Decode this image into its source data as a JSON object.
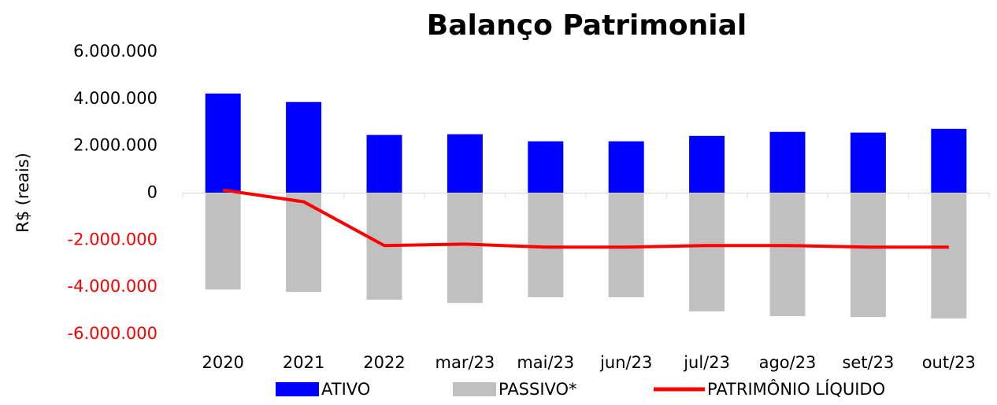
{
  "chart_data": {
    "type": "bar",
    "title": "Balanço Patrimonial",
    "y_label": "R$ (reais)",
    "categories": [
      "2020",
      "2021",
      "2022",
      "mar/23",
      "mai/23",
      "jun/23",
      "jul/23",
      "ago/23",
      "set/23",
      "out/23"
    ],
    "series": [
      {
        "name": "ATIVO",
        "type": "bar",
        "color": "#0000ff",
        "values": [
          4230000,
          3870000,
          2470000,
          2500000,
          2200000,
          2200000,
          2430000,
          2600000,
          2570000,
          2730000
        ]
      },
      {
        "name": "PASSIVO*",
        "type": "bar",
        "color": "#c0c0c0",
        "values": [
          -4100000,
          -4200000,
          -4530000,
          -4670000,
          -4430000,
          -4430000,
          -5030000,
          -5230000,
          -5270000,
          -5330000
        ]
      },
      {
        "name": "PATRIMÔNIO LÍQUIDO",
        "type": "line",
        "color": "#ff0000",
        "values": [
          130000,
          -370000,
          -2230000,
          -2170000,
          -2300000,
          -2300000,
          -2230000,
          -2230000,
          -2300000,
          -2300000
        ]
      }
    ],
    "ylim": [
      -6000000,
      6000000
    ],
    "yticks": [
      {
        "value": 6000000,
        "label": "6.000.000"
      },
      {
        "value": 4000000,
        "label": "4.000.000"
      },
      {
        "value": 2000000,
        "label": "2.000.000"
      },
      0,
      {
        "value": -2000000,
        "label": "-2.000.000"
      },
      {
        "value": -4000000,
        "label": "-4.000.000"
      },
      {
        "value": -6000000,
        "label": "-6.000.000"
      }
    ],
    "negative_tick_color": "#ff0000",
    "grid": false,
    "legend": "bottom"
  }
}
